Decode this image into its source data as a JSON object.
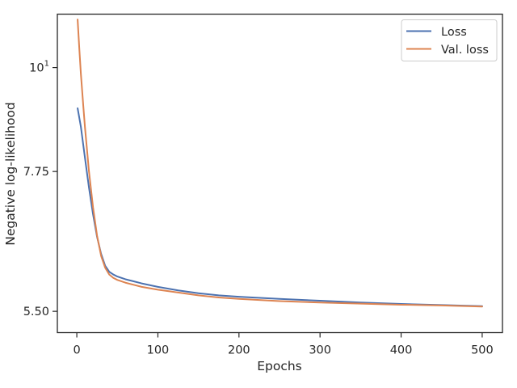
{
  "chart_data": {
    "type": "line",
    "xlabel": "Epochs",
    "ylabel": "Negative log-likelihood",
    "yscale": "log",
    "xlim": [
      -24,
      525
    ],
    "ylim": [
      5.22,
      11.4
    ],
    "grid": false,
    "legend_position": "top-right",
    "x_ticks": [
      {
        "value": 0,
        "label": "0"
      },
      {
        "value": 100,
        "label": "100"
      },
      {
        "value": 200,
        "label": "200"
      },
      {
        "value": 300,
        "label": "300"
      },
      {
        "value": 400,
        "label": "400"
      },
      {
        "value": 500,
        "label": "500"
      }
    ],
    "y_ticks": [
      {
        "value": 5.5,
        "label": "5.50",
        "sup": ""
      },
      {
        "value": 7.75,
        "label": "7.75",
        "sup": ""
      },
      {
        "value": 10,
        "label": "10",
        "sup": "1"
      }
    ],
    "series": [
      {
        "name": "Loss",
        "color": "#4c72b0",
        "x": [
          1,
          5,
          10,
          15,
          20,
          25,
          30,
          35,
          40,
          45,
          50,
          60,
          70,
          80,
          100,
          125,
          150,
          175,
          200,
          250,
          300,
          350,
          400,
          450,
          500
        ],
        "y": [
          9.05,
          8.65,
          8.02,
          7.45,
          6.98,
          6.6,
          6.33,
          6.15,
          6.06,
          6.02,
          5.99,
          5.95,
          5.92,
          5.89,
          5.84,
          5.79,
          5.75,
          5.72,
          5.7,
          5.67,
          5.645,
          5.62,
          5.6,
          5.585,
          5.57
        ]
      },
      {
        "name": "Val. loss",
        "color": "#dd8452",
        "x": [
          1,
          3,
          5,
          8,
          10,
          15,
          20,
          25,
          30,
          35,
          40,
          45,
          50,
          60,
          70,
          80,
          100,
          125,
          150,
          175,
          200,
          250,
          300,
          350,
          400,
          450,
          500
        ],
        "y": [
          11.25,
          10.5,
          9.85,
          9.1,
          8.65,
          7.75,
          7.1,
          6.62,
          6.3,
          6.12,
          6.02,
          5.97,
          5.94,
          5.9,
          5.87,
          5.84,
          5.8,
          5.76,
          5.72,
          5.69,
          5.67,
          5.64,
          5.62,
          5.605,
          5.59,
          5.58,
          5.565
        ]
      }
    ]
  }
}
